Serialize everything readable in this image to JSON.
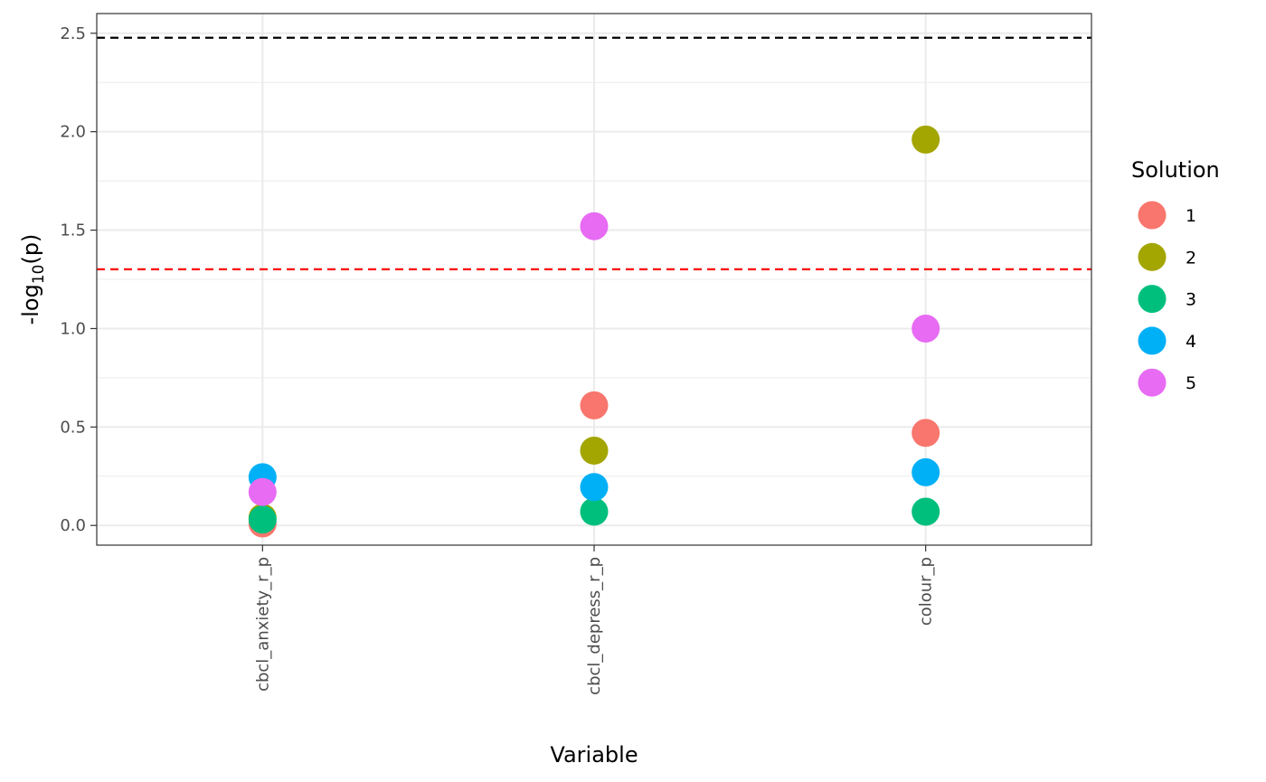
{
  "chart_data": {
    "type": "scatter",
    "title": "",
    "xlabel": "Variable",
    "ylabel": {
      "prefix": "-log",
      "sub": "10",
      "suffix": "(p)"
    },
    "categories": [
      "cbcl_anxiety_r_p",
      "cbcl_depress_r_p",
      "colour_p"
    ],
    "ylim": [
      -0.1,
      2.6
    ],
    "yticks": [
      0.0,
      0.5,
      1.0,
      1.5,
      2.0,
      2.5
    ],
    "ytick_labels": [
      "0.0",
      "0.5",
      "1.0",
      "1.5",
      "2.0",
      "2.5"
    ],
    "grid": true,
    "hlines": [
      {
        "y": 2.477,
        "color": "#000000",
        "style": "dashed"
      },
      {
        "y": 1.301,
        "color": "#ff0000",
        "style": "dashed"
      }
    ],
    "legend": {
      "title": "Solution",
      "position": "right"
    },
    "series": [
      {
        "name": "1",
        "color": "#F8766D",
        "values": [
          0.01,
          0.61,
          0.47
        ]
      },
      {
        "name": "2",
        "color": "#A3A500",
        "values": [
          0.04,
          0.38,
          1.96
        ]
      },
      {
        "name": "3",
        "color": "#00BF7D",
        "values": [
          0.03,
          0.07,
          0.07
        ]
      },
      {
        "name": "4",
        "color": "#00B0F6",
        "values": [
          0.245,
          0.195,
          0.27
        ]
      },
      {
        "name": "5",
        "color": "#E76BF3",
        "values": [
          0.17,
          1.52,
          1.0
        ]
      }
    ]
  }
}
